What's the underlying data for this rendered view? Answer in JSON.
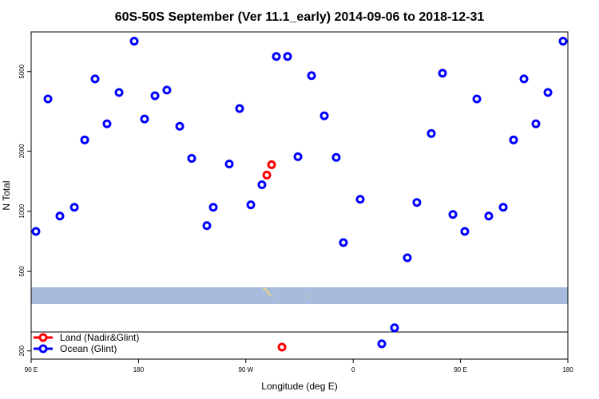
{
  "chart_data": {
    "type": "scatter",
    "title": "60S-50S September (Ver 11.1_early)   2014-09-06 to 2018-12-31",
    "x_label": "Longitude (deg E)",
    "y_label": "N Total",
    "log_y": true,
    "xlim": [
      90,
      540
    ],
    "ylim": [
      182,
      7900
    ],
    "xticks": [
      {
        "value": 90,
        "label": "90 E"
      },
      {
        "value": 180,
        "label": "180"
      },
      {
        "value": 270,
        "label": "90 W"
      },
      {
        "value": 360,
        "label": "0"
      },
      {
        "value": 450,
        "label": "90 E"
      },
      {
        "value": 540,
        "label": "180"
      }
    ],
    "yticks": [
      200,
      500,
      1000,
      2000,
      5000
    ],
    "legend": "bottom-left",
    "series": [
      {
        "name": "Land (Nadir&Glint)",
        "color": "#ff0000",
        "x": [
          291.6,
          287.6,
          300.3
        ],
        "values": [
          1710,
          1517,
          209
        ]
      },
      {
        "name": "Ocean (Glint)",
        "color": "#0000ff",
        "x": [
          94.0,
          104.1,
          114.1,
          126.2,
          134.9,
          143.6,
          153.6,
          163.7,
          176.4,
          185.1,
          193.8,
          203.8,
          214.6,
          224.6,
          237.3,
          242.7,
          256.1,
          264.8,
          274.2,
          283.5,
          295.6,
          305.0,
          313.7,
          325.1,
          335.8,
          345.8,
          351.8,
          365.9,
          384.0,
          394.7,
          405.4,
          413.4,
          425.5,
          434.9,
          443.6,
          453.6,
          463.7,
          473.7,
          485.8,
          494.5,
          503.2,
          513.2,
          523.3,
          536.0
        ],
        "values": [
          793,
          3648,
          946,
          1047,
          2276,
          4596,
          2741,
          3930,
          7096,
          2896,
          3785,
          4040,
          2663,
          1840,
          847,
          1047,
          1725,
          3266,
          1077,
          1357,
          5956,
          5956,
          1875,
          4774,
          3006,
          1860,
          697,
          1148,
          217,
          261,
          585,
          1107,
          2450,
          4908,
          964,
          793,
          3648,
          946,
          1047,
          2276,
          4596,
          2741,
          3930,
          7096
        ]
      }
    ]
  }
}
